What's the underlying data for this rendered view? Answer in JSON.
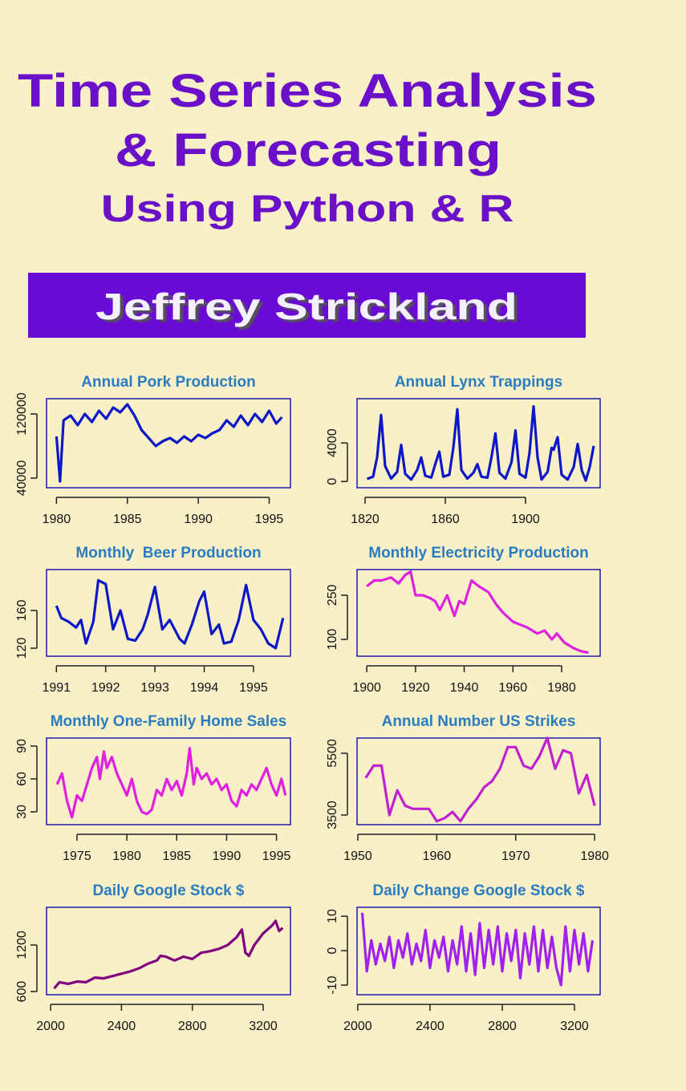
{
  "cover": {
    "title_lines": [
      "Time Series Analysis",
      "& Forecasting",
      "Using Python & R"
    ],
    "author": "Jeffrey Strickland"
  },
  "chart_data": [
    {
      "type": "line",
      "title": "Annual Pork Production",
      "color": "#0c18c8",
      "x": [
        1980,
        1980.25,
        1980.5,
        1981,
        1981.5,
        1982,
        1982.5,
        1983,
        1983.5,
        1984,
        1984.5,
        1985,
        1985.5,
        1986,
        1986.5,
        1987,
        1987.5,
        1988,
        1988.5,
        1989,
        1989.5,
        1990,
        1990.5,
        1991,
        1991.5,
        1992,
        1992.5,
        1993,
        1993.5,
        1994,
        1994.5,
        1995,
        1995.5,
        1995.9
      ],
      "values": [
        92000,
        36000,
        112000,
        118000,
        106000,
        120000,
        110000,
        124000,
        114000,
        128000,
        122000,
        132000,
        118000,
        100000,
        90000,
        80000,
        86000,
        90000,
        84000,
        92000,
        86000,
        94000,
        90000,
        96000,
        100000,
        112000,
        104000,
        118000,
        106000,
        120000,
        110000,
        124000,
        108000,
        116000
      ],
      "xlim": [
        1979.3,
        1996.5
      ],
      "ylim": [
        28000,
        139000
      ],
      "xticks": [
        1980,
        1985,
        1990,
        1995
      ],
      "yticks": [
        40000,
        120000
      ]
    },
    {
      "type": "line",
      "title": "Annual Lynx Trappings",
      "color": "#0c18c8",
      "x": [
        1821,
        1824,
        1826,
        1828,
        1830,
        1833,
        1836,
        1838,
        1840,
        1843,
        1846,
        1848,
        1850,
        1853,
        1855,
        1857,
        1859,
        1862,
        1864,
        1866,
        1868,
        1871,
        1874,
        1876,
        1878,
        1881,
        1883,
        1885,
        1887,
        1890,
        1893,
        1895,
        1897,
        1900,
        1902,
        1904,
        1906,
        1908,
        1911,
        1913,
        1914,
        1916,
        1918,
        1921,
        1924,
        1926,
        1928,
        1930,
        1932,
        1934
      ],
      "values": [
        270,
        500,
        2500,
        6900,
        1600,
        300,
        1000,
        3800,
        800,
        200,
        1200,
        2500,
        600,
        400,
        1800,
        3100,
        500,
        700,
        3500,
        7500,
        1200,
        300,
        900,
        1800,
        500,
        400,
        2500,
        5000,
        900,
        300,
        2000,
        5300,
        800,
        400,
        3000,
        7800,
        2500,
        200,
        1000,
        3500,
        3300,
        4600,
        700,
        200,
        1500,
        3900,
        1200,
        100,
        1500,
        3700
      ],
      "xlim": [
        1816,
        1937.2
      ],
      "ylim": [
        -650,
        8600
      ],
      "xticks": [
        1820,
        1860,
        1900
      ],
      "yticks": [
        0,
        4000
      ]
    },
    {
      "type": "line",
      "title": "Monthly  Beer Production",
      "color": "#0c18c8",
      "x": [
        1991,
        1991.1,
        1991.25,
        1991.4,
        1991.5,
        1991.6,
        1991.75,
        1991.85,
        1992,
        1992.15,
        1992.3,
        1992.45,
        1992.6,
        1992.75,
        1992.85,
        1993,
        1993.15,
        1993.3,
        1993.5,
        1993.6,
        1993.75,
        1993.9,
        1994,
        1994.15,
        1994.3,
        1994.4,
        1994.55,
        1994.7,
        1994.85,
        1995,
        1995.15,
        1995.3,
        1995.45,
        1995.6
      ],
      "values": [
        165,
        152,
        148,
        142,
        150,
        125,
        148,
        192,
        188,
        140,
        160,
        130,
        128,
        140,
        155,
        185,
        140,
        150,
        130,
        125,
        145,
        170,
        180,
        135,
        145,
        125,
        127,
        150,
        187,
        150,
        140,
        125,
        120,
        152
      ],
      "xlim": [
        1990.8,
        1995.75
      ],
      "ylim": [
        111.5,
        203.4
      ],
      "xticks": [
        1991,
        1992,
        1993,
        1994,
        1995
      ],
      "yticks": [
        120,
        160
      ]
    },
    {
      "type": "line",
      "title": "Monthly Electricity Production",
      "color": "#e020e0",
      "x": [
        1900,
        1903,
        1906,
        1910,
        1913,
        1916,
        1918,
        1920,
        1923,
        1926,
        1928,
        1930,
        1933,
        1936,
        1938,
        1940,
        1943,
        1946,
        1950,
        1953,
        1956,
        1960,
        1963,
        1966,
        1970,
        1973,
        1976,
        1978,
        1981,
        1985,
        1988,
        1991
      ],
      "values": [
        280,
        300,
        300,
        310,
        290,
        320,
        330,
        250,
        250,
        240,
        230,
        200,
        250,
        180,
        230,
        220,
        300,
        280,
        260,
        220,
        190,
        160,
        150,
        140,
        120,
        130,
        100,
        120,
        90,
        70,
        60,
        55
      ],
      "xlim": [
        1896,
        1995.8
      ],
      "ylim": [
        43,
        337
      ],
      "xticks": [
        1900,
        1920,
        1940,
        1960,
        1980
      ],
      "yticks": [
        100,
        250
      ]
    },
    {
      "type": "line",
      "title": "Monthly One-Family Home Sales",
      "color": "#e020e0",
      "x": [
        1973,
        1973.5,
        1974,
        1974.5,
        1975,
        1975.5,
        1976,
        1976.5,
        1977,
        1977.3,
        1977.7,
        1978,
        1978.5,
        1979,
        1979.5,
        1980,
        1980.5,
        1981,
        1981.5,
        1982,
        1982.5,
        1983,
        1983.5,
        1984,
        1984.5,
        1985,
        1985.5,
        1986,
        1986.3,
        1986.7,
        1987,
        1987.5,
        1988,
        1988.5,
        1989,
        1989.5,
        1990,
        1990.5,
        1991,
        1991.5,
        1992,
        1992.5,
        1993,
        1993.5,
        1994,
        1994.5,
        1995,
        1995.5,
        1995.9
      ],
      "values": [
        55,
        65,
        40,
        25,
        45,
        40,
        55,
        70,
        80,
        60,
        85,
        70,
        80,
        65,
        55,
        45,
        60,
        40,
        30,
        28,
        32,
        50,
        45,
        60,
        50,
        58,
        45,
        65,
        88,
        55,
        70,
        60,
        65,
        55,
        60,
        50,
        55,
        40,
        35,
        50,
        45,
        55,
        50,
        60,
        70,
        55,
        45,
        60,
        45
      ],
      "xlim": [
        1971.95,
        1996.4
      ],
      "ylim": [
        18.3,
        97.3
      ],
      "xticks": [
        1975,
        1980,
        1985,
        1990,
        1995
      ],
      "yticks": [
        30,
        60,
        90
      ]
    },
    {
      "type": "line",
      "title": "Annual Number US Strikes",
      "color": "#c020d0",
      "x": [
        1951,
        1952,
        1953,
        1954,
        1955,
        1956,
        1957,
        1958,
        1959,
        1960,
        1961,
        1962,
        1963,
        1964,
        1965,
        1966,
        1967,
        1968,
        1969,
        1970,
        1971,
        1972,
        1973,
        1974,
        1975,
        1976,
        1977,
        1978,
        1979,
        1980
      ],
      "values": [
        4700,
        5100,
        5100,
        3500,
        4300,
        3800,
        3700,
        3700,
        3700,
        3300,
        3400,
        3600,
        3300,
        3700,
        4000,
        4400,
        4600,
        5000,
        5700,
        5700,
        5100,
        5000,
        5400,
        6000,
        5000,
        5600,
        5500,
        4200,
        4800,
        3800
      ],
      "xlim": [
        1949.9,
        1980.7
      ],
      "ylim": [
        3188,
        5994
      ],
      "xticks": [
        1950,
        1960,
        1970,
        1980
      ],
      "yticks": [
        3500,
        5500
      ]
    },
    {
      "type": "line",
      "title": "Daily Google Stock $",
      "color": "#800080",
      "x": [
        2020,
        2050,
        2100,
        2150,
        2200,
        2250,
        2300,
        2350,
        2400,
        2450,
        2500,
        2550,
        2600,
        2620,
        2650,
        2700,
        2750,
        2800,
        2850,
        2900,
        2950,
        3000,
        3050,
        3080,
        3100,
        3120,
        3150,
        3200,
        3250,
        3270,
        3290,
        3310
      ],
      "values": [
        640,
        720,
        700,
        730,
        720,
        780,
        770,
        800,
        830,
        860,
        900,
        960,
        1000,
        1060,
        1050,
        1000,
        1050,
        1020,
        1100,
        1120,
        1150,
        1200,
        1300,
        1400,
        1100,
        1060,
        1200,
        1350,
        1450,
        1510,
        1380,
        1420
      ],
      "xlim": [
        1977,
        3354
      ],
      "ylim": [
        559,
        1686
      ],
      "xticks": [
        2000,
        2400,
        2800,
        3200
      ],
      "yticks": [
        600,
        1200
      ]
    },
    {
      "type": "line",
      "title": "Daily Change Google Stock $",
      "color": "#a020f0",
      "x": [
        2025,
        2050,
        2075,
        2100,
        2125,
        2150,
        2175,
        2200,
        2225,
        2250,
        2275,
        2300,
        2325,
        2350,
        2375,
        2400,
        2425,
        2450,
        2475,
        2500,
        2525,
        2550,
        2575,
        2600,
        2625,
        2650,
        2675,
        2700,
        2725,
        2750,
        2775,
        2800,
        2825,
        2850,
        2875,
        2900,
        2925,
        2950,
        2975,
        3000,
        3025,
        3050,
        3075,
        3100,
        3125,
        3150,
        3175,
        3200,
        3225,
        3250,
        3275,
        3300
      ],
      "values": [
        11,
        -6,
        3,
        -4,
        2,
        -3,
        4,
        -5,
        3,
        -2,
        5,
        -4,
        2,
        -3,
        6,
        -5,
        3,
        -2,
        4,
        -6,
        3,
        -4,
        7,
        -6,
        5,
        -7,
        8,
        -5,
        6,
        -4,
        7,
        -6,
        5,
        -3,
        6,
        -8,
        5,
        -4,
        7,
        -6,
        6,
        -5,
        4,
        -5,
        -10,
        7,
        -6,
        6,
        -4,
        5,
        -6,
        3
      ],
      "xlim": [
        1996,
        3342
      ],
      "ylim": [
        -12.8,
        12.6
      ],
      "xticks": [
        2000,
        2400,
        2800,
        3200
      ],
      "yticks": [
        -10,
        0,
        10
      ]
    }
  ]
}
